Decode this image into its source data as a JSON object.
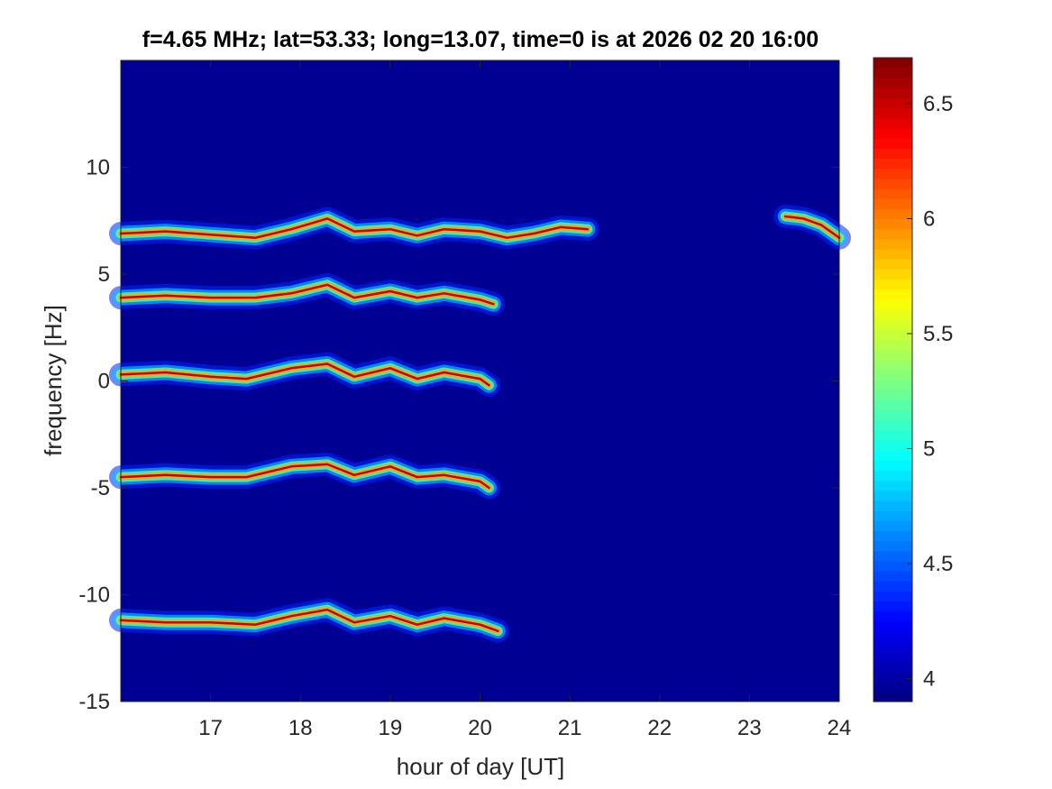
{
  "chart_data": {
    "type": "heatmap",
    "title": "f=4.65 MHz;  lat=53.33; long=13.07, time=0 is at 2026 02 20 16:00",
    "xlabel": "hour of day [UT]",
    "ylabel": "frequency [Hz]",
    "xlim": [
      16.0,
      24.0
    ],
    "ylim": [
      -15,
      15
    ],
    "xticks": [
      17,
      18,
      19,
      20,
      21,
      22,
      23,
      24
    ],
    "yticks": [
      -15,
      -10,
      -5,
      0,
      5,
      10
    ],
    "colorbar": {
      "colormap": "jet",
      "range": [
        3.9,
        6.7
      ],
      "ticks": [
        4,
        4.5,
        5,
        5.5,
        6,
        6.5
      ],
      "tick_labels": [
        "4",
        "4.5",
        "5",
        "5.5",
        "6",
        "6.5"
      ]
    },
    "background_value": 3.95,
    "traces": [
      {
        "band": 4,
        "points": [
          [
            16.0,
            6.9
          ],
          [
            16.5,
            7.0
          ],
          [
            17.0,
            6.85
          ],
          [
            17.5,
            6.7
          ],
          [
            17.9,
            7.1
          ],
          [
            18.3,
            7.6
          ],
          [
            18.6,
            7.0
          ],
          [
            19.0,
            7.1
          ],
          [
            19.3,
            6.8
          ],
          [
            19.6,
            7.1
          ],
          [
            20.0,
            7.0
          ],
          [
            20.3,
            6.7
          ],
          [
            20.6,
            6.9
          ],
          [
            20.9,
            7.2
          ],
          [
            21.2,
            7.1
          ]
        ]
      },
      {
        "band": 4,
        "points": [
          [
            23.4,
            7.7
          ],
          [
            23.6,
            7.6
          ],
          [
            23.8,
            7.3
          ],
          [
            24.0,
            6.7
          ]
        ]
      },
      {
        "band": 3,
        "points": [
          [
            16.0,
            3.9
          ],
          [
            16.5,
            4.0
          ],
          [
            17.0,
            3.9
          ],
          [
            17.5,
            3.9
          ],
          [
            17.9,
            4.1
          ],
          [
            18.3,
            4.5
          ],
          [
            18.6,
            3.9
          ],
          [
            19.0,
            4.2
          ],
          [
            19.3,
            3.9
          ],
          [
            19.6,
            4.1
          ],
          [
            20.0,
            3.8
          ],
          [
            20.15,
            3.6
          ]
        ]
      },
      {
        "band": 2,
        "points": [
          [
            16.0,
            0.3
          ],
          [
            16.5,
            0.4
          ],
          [
            17.0,
            0.2
          ],
          [
            17.4,
            0.1
          ],
          [
            17.9,
            0.6
          ],
          [
            18.3,
            0.8
          ],
          [
            18.6,
            0.2
          ],
          [
            19.0,
            0.6
          ],
          [
            19.3,
            0.1
          ],
          [
            19.6,
            0.4
          ],
          [
            20.0,
            0.1
          ],
          [
            20.1,
            -0.2
          ]
        ]
      },
      {
        "band": 1,
        "points": [
          [
            16.0,
            -4.5
          ],
          [
            16.5,
            -4.4
          ],
          [
            17.0,
            -4.5
          ],
          [
            17.4,
            -4.5
          ],
          [
            17.9,
            -4.0
          ],
          [
            18.3,
            -3.9
          ],
          [
            18.6,
            -4.4
          ],
          [
            19.0,
            -4.0
          ],
          [
            19.3,
            -4.5
          ],
          [
            19.6,
            -4.4
          ],
          [
            20.0,
            -4.7
          ],
          [
            20.1,
            -5.0
          ]
        ]
      },
      {
        "band": 0,
        "points": [
          [
            16.0,
            -11.2
          ],
          [
            16.5,
            -11.3
          ],
          [
            17.0,
            -11.3
          ],
          [
            17.5,
            -11.4
          ],
          [
            17.9,
            -11.0
          ],
          [
            18.3,
            -10.7
          ],
          [
            18.6,
            -11.3
          ],
          [
            19.0,
            -11.0
          ],
          [
            19.3,
            -11.4
          ],
          [
            19.6,
            -11.1
          ],
          [
            20.0,
            -11.4
          ],
          [
            20.2,
            -11.7
          ]
        ]
      }
    ]
  }
}
